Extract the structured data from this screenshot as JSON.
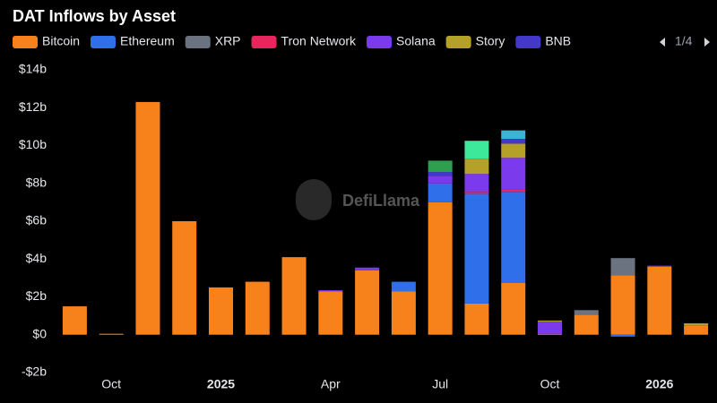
{
  "chart_data": {
    "type": "stacked_bar",
    "title": "DAT Inflows by Asset",
    "legend_page": "1/4",
    "watermark": "DefiLlama",
    "categories": [
      null,
      "Oct",
      null,
      null,
      "2025",
      null,
      null,
      "Apr",
      null,
      null,
      "Jul",
      null,
      null,
      "Oct",
      null,
      null,
      "2026",
      null
    ],
    "ylim": [
      -2,
      14
    ],
    "yticks": [
      {
        "value": -2,
        "label": "-$2b"
      },
      {
        "value": 0,
        "label": "$0"
      },
      {
        "value": 2,
        "label": "$2b"
      },
      {
        "value": 4,
        "label": "$4b"
      },
      {
        "value": 6,
        "label": "$6b"
      },
      {
        "value": 8,
        "label": "$8b"
      },
      {
        "value": 10,
        "label": "$10b"
      },
      {
        "value": 12,
        "label": "$12b"
      },
      {
        "value": 14,
        "label": "$14b"
      }
    ],
    "series": [
      {
        "name": "Bitcoin",
        "color": "#f7821b",
        "values": [
          1.5,
          0.05,
          12.3,
          6.0,
          2.5,
          2.8,
          4.1,
          2.3,
          3.4,
          2.3,
          7.0,
          1.65,
          2.75,
          0.05,
          1.05,
          3.15,
          3.6,
          0.5
        ]
      },
      {
        "name": "Ethereum",
        "color": "#2f6fe9",
        "values": [
          null,
          null,
          null,
          null,
          null,
          null,
          null,
          null,
          null,
          0.5,
          1.0,
          5.8,
          4.8,
          null,
          null,
          -0.1,
          null,
          null
        ]
      },
      {
        "name": "XRP",
        "color": "#6b7280",
        "values": [
          null,
          null,
          null,
          null,
          null,
          null,
          null,
          null,
          null,
          null,
          null,
          null,
          null,
          null,
          0.25,
          0.9,
          null,
          null
        ]
      },
      {
        "name": "Tron Network",
        "color": "#e8265d",
        "values": [
          null,
          null,
          null,
          null,
          null,
          null,
          null,
          null,
          null,
          null,
          null,
          0.1,
          0.15,
          null,
          null,
          null,
          null,
          null
        ]
      },
      {
        "name": "Solana",
        "color": "#7c3aed",
        "values": [
          null,
          null,
          null,
          null,
          null,
          null,
          null,
          0.05,
          0.15,
          null,
          0.4,
          0.95,
          1.65,
          0.65,
          null,
          null,
          0.05,
          null
        ]
      },
      {
        "name": "Story",
        "color": "#b5a12a",
        "values": [
          null,
          null,
          null,
          null,
          null,
          null,
          null,
          null,
          null,
          null,
          null,
          0.8,
          0.75,
          0.05,
          null,
          null,
          null,
          0.1
        ]
      },
      {
        "name": "BNB",
        "color": "#4338ca",
        "values": [
          null,
          null,
          null,
          null,
          null,
          null,
          null,
          null,
          null,
          null,
          0.2,
          null,
          0.25,
          null,
          null,
          null,
          null,
          null
        ]
      },
      {
        "color": "#2e9e4f",
        "values": [
          null,
          null,
          null,
          null,
          null,
          null,
          null,
          null,
          null,
          null,
          0.6,
          null,
          null,
          null,
          null,
          null,
          null,
          null
        ]
      },
      {
        "color": "#3ee89a",
        "values": [
          null,
          null,
          null,
          null,
          null,
          null,
          null,
          null,
          null,
          null,
          null,
          0.95,
          null,
          null,
          null,
          null,
          null,
          null
        ]
      },
      {
        "color": "#3fb3d6",
        "values": [
          null,
          null,
          null,
          null,
          null,
          null,
          null,
          null,
          null,
          null,
          null,
          null,
          0.45,
          null,
          null,
          null,
          null,
          null
        ]
      }
    ]
  }
}
